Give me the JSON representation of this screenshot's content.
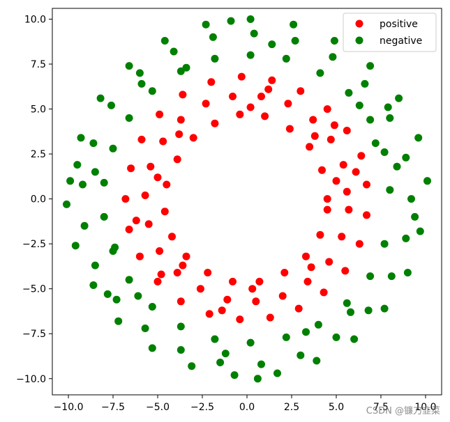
{
  "chart_data": {
    "type": "scatter",
    "title": "",
    "xlabel": "",
    "ylabel": "",
    "xlim": [
      -10.9,
      10.9
    ],
    "ylim": [
      -10.9,
      10.6
    ],
    "xticks": [
      -10.0,
      -7.5,
      -5.0,
      -2.5,
      0.0,
      2.5,
      5.0,
      7.5,
      10.0
    ],
    "yticks": [
      -10.0,
      -7.5,
      -5.0,
      -2.5,
      0.0,
      2.5,
      5.0,
      7.5,
      10.0
    ],
    "xtick_labels": [
      "−10.0",
      "−7.5",
      "−5.0",
      "−2.5",
      "0.0",
      "2.5",
      "5.0",
      "7.5",
      "10.0"
    ],
    "ytick_labels": [
      "−10.0",
      "−7.5",
      "−5.0",
      "−2.5",
      "0.0",
      "2.5",
      "5.0",
      "7.5",
      "10.0"
    ],
    "grid": false,
    "legend_position": "top-right",
    "series": [
      {
        "name": "positive",
        "color": "#ff0000",
        "values": [
          [
            4.5,
            0.0
          ],
          [
            4.2,
            1.6
          ],
          [
            3.5,
            2.9
          ],
          [
            2.4,
            3.9
          ],
          [
            1.0,
            4.6
          ],
          [
            -0.4,
            4.7
          ],
          [
            -1.8,
            4.2
          ],
          [
            -3.0,
            3.4
          ],
          [
            -3.9,
            2.2
          ],
          [
            -4.5,
            0.8
          ],
          [
            -4.6,
            -0.7
          ],
          [
            -4.2,
            -2.1
          ],
          [
            -3.4,
            -3.2
          ],
          [
            -2.2,
            -4.1
          ],
          [
            -0.8,
            -4.6
          ],
          [
            0.7,
            -4.6
          ],
          [
            2.1,
            -4.1
          ],
          [
            3.3,
            -3.2
          ],
          [
            4.1,
            -2.0
          ],
          [
            4.5,
            -0.6
          ],
          [
            5.6,
            0.4
          ],
          [
            5.4,
            1.9
          ],
          [
            4.7,
            3.3
          ],
          [
            3.7,
            4.4
          ],
          [
            2.3,
            5.3
          ],
          [
            0.8,
            5.7
          ],
          [
            -0.8,
            5.7
          ],
          [
            -2.3,
            5.3
          ],
          [
            -3.7,
            4.4
          ],
          [
            -4.7,
            3.2
          ],
          [
            -5.4,
            1.8
          ],
          [
            -5.7,
            0.2
          ],
          [
            -5.5,
            -1.4
          ],
          [
            -4.9,
            -2.9
          ],
          [
            -3.9,
            -4.1
          ],
          [
            -2.6,
            -5.0
          ],
          [
            -1.1,
            -5.6
          ],
          [
            0.5,
            -5.7
          ],
          [
            2.0,
            -5.4
          ],
          [
            3.4,
            -4.6
          ],
          [
            4.6,
            -3.5
          ],
          [
            5.3,
            -2.1
          ],
          [
            5.7,
            -0.6
          ],
          [
            6.7,
            0.8
          ],
          [
            6.4,
            2.4
          ],
          [
            5.6,
            3.8
          ],
          [
            4.5,
            5.0
          ],
          [
            3.0,
            6.0
          ],
          [
            1.4,
            6.6
          ],
          [
            -0.3,
            6.8
          ],
          [
            -2.0,
            6.5
          ],
          [
            -3.6,
            5.8
          ],
          [
            -4.9,
            4.7
          ],
          [
            -5.9,
            3.3
          ],
          [
            -6.5,
            1.7
          ],
          [
            -6.8,
            0.0
          ],
          [
            -6.6,
            -1.7
          ],
          [
            -6.0,
            -3.2
          ],
          [
            -5.0,
            -4.6
          ],
          [
            -3.7,
            -5.7
          ],
          [
            -2.1,
            -6.4
          ],
          [
            -0.4,
            -6.7
          ],
          [
            1.3,
            -6.6
          ],
          [
            2.9,
            -6.1
          ],
          [
            4.3,
            -5.2
          ],
          [
            5.5,
            -4.0
          ],
          [
            6.3,
            -2.5
          ],
          [
            6.7,
            -0.9
          ],
          [
            5.0,
            1.0
          ],
          [
            -5.0,
            1.2
          ],
          [
            0.2,
            5.1
          ],
          [
            0.3,
            -5.0
          ],
          [
            3.8,
            3.5
          ],
          [
            -3.6,
            -3.7
          ],
          [
            -3.8,
            3.6
          ],
          [
            3.6,
            -3.8
          ],
          [
            6.1,
            1.5
          ],
          [
            -6.2,
            -1.2
          ],
          [
            1.2,
            6.1
          ],
          [
            -1.4,
            -6.2
          ],
          [
            4.9,
            4.1
          ],
          [
            -4.8,
            -4.2
          ]
        ]
      },
      {
        "name": "negative",
        "color": "#008000",
        "values": [
          [
            8.0,
            0.5
          ],
          [
            7.7,
            2.6
          ],
          [
            6.9,
            4.4
          ],
          [
            5.7,
            5.9
          ],
          [
            4.1,
            7.0
          ],
          [
            2.2,
            7.8
          ],
          [
            0.2,
            8.0
          ],
          [
            -1.8,
            7.8
          ],
          [
            -3.7,
            7.1
          ],
          [
            -5.3,
            6.0
          ],
          [
            -6.6,
            4.5
          ],
          [
            -7.5,
            2.8
          ],
          [
            -8.0,
            0.9
          ],
          [
            -8.0,
            -1.0
          ],
          [
            -7.5,
            -2.9
          ],
          [
            -6.6,
            -4.5
          ],
          [
            -5.3,
            -6.0
          ],
          [
            -3.7,
            -7.1
          ],
          [
            -1.8,
            -7.8
          ],
          [
            0.2,
            -8.0
          ],
          [
            2.2,
            -7.7
          ],
          [
            4.0,
            -7.0
          ],
          [
            5.6,
            -5.8
          ],
          [
            6.9,
            -4.3
          ],
          [
            7.7,
            -2.5
          ],
          [
            9.2,
            0.0
          ],
          [
            8.9,
            2.3
          ],
          [
            8.0,
            4.5
          ],
          [
            6.6,
            6.4
          ],
          [
            4.8,
            7.9
          ],
          [
            2.7,
            8.8
          ],
          [
            0.4,
            9.2
          ],
          [
            -1.9,
            9.0
          ],
          [
            -4.1,
            8.2
          ],
          [
            -6.0,
            7.0
          ],
          [
            -7.6,
            5.2
          ],
          [
            -8.6,
            3.1
          ],
          [
            -9.2,
            0.8
          ],
          [
            -9.1,
            -1.5
          ],
          [
            -8.5,
            -3.7
          ],
          [
            -7.3,
            -5.6
          ],
          [
            -5.7,
            -7.2
          ],
          [
            -3.7,
            -8.4
          ],
          [
            -1.5,
            -9.1
          ],
          [
            0.8,
            -9.2
          ],
          [
            3.0,
            -8.7
          ],
          [
            5.0,
            -7.7
          ],
          [
            6.8,
            -6.2
          ],
          [
            8.1,
            -4.3
          ],
          [
            8.9,
            -2.2
          ],
          [
            10.1,
            1.0
          ],
          [
            9.6,
            3.4
          ],
          [
            8.5,
            5.6
          ],
          [
            6.9,
            7.4
          ],
          [
            4.9,
            8.8
          ],
          [
            2.6,
            9.7
          ],
          [
            0.2,
            10.0
          ],
          [
            -2.3,
            9.7
          ],
          [
            -4.6,
            8.8
          ],
          [
            -6.6,
            7.4
          ],
          [
            -8.2,
            5.6
          ],
          [
            -9.3,
            3.4
          ],
          [
            -9.9,
            1.0
          ],
          [
            -10.1,
            -0.3
          ],
          [
            -9.6,
            -2.6
          ],
          [
            -8.6,
            -4.8
          ],
          [
            -7.2,
            -6.8
          ],
          [
            -5.3,
            -8.3
          ],
          [
            -3.1,
            -9.3
          ],
          [
            -0.7,
            -9.8
          ],
          [
            1.7,
            -9.7
          ],
          [
            3.9,
            -9.0
          ],
          [
            6.0,
            -7.8
          ],
          [
            7.7,
            -6.1
          ],
          [
            9.0,
            -4.1
          ],
          [
            9.7,
            -1.8
          ],
          [
            8.4,
            1.8
          ],
          [
            -8.5,
            1.5
          ],
          [
            1.4,
            8.6
          ],
          [
            -1.2,
            -8.6
          ],
          [
            6.3,
            5.2
          ],
          [
            -6.1,
            -5.4
          ],
          [
            -5.9,
            6.4
          ],
          [
            5.8,
            -6.3
          ],
          [
            7.2,
            3.1
          ],
          [
            -7.4,
            -2.7
          ],
          [
            3.3,
            -7.4
          ],
          [
            -3.4,
            7.3
          ],
          [
            9.4,
            -1.0
          ],
          [
            -9.5,
            1.9
          ],
          [
            0.6,
            -10.0
          ],
          [
            -0.9,
            9.9
          ],
          [
            7.9,
            5.1
          ],
          [
            -7.8,
            -5.3
          ]
        ]
      }
    ]
  },
  "watermark": "CSDN @镰刀韭菜"
}
